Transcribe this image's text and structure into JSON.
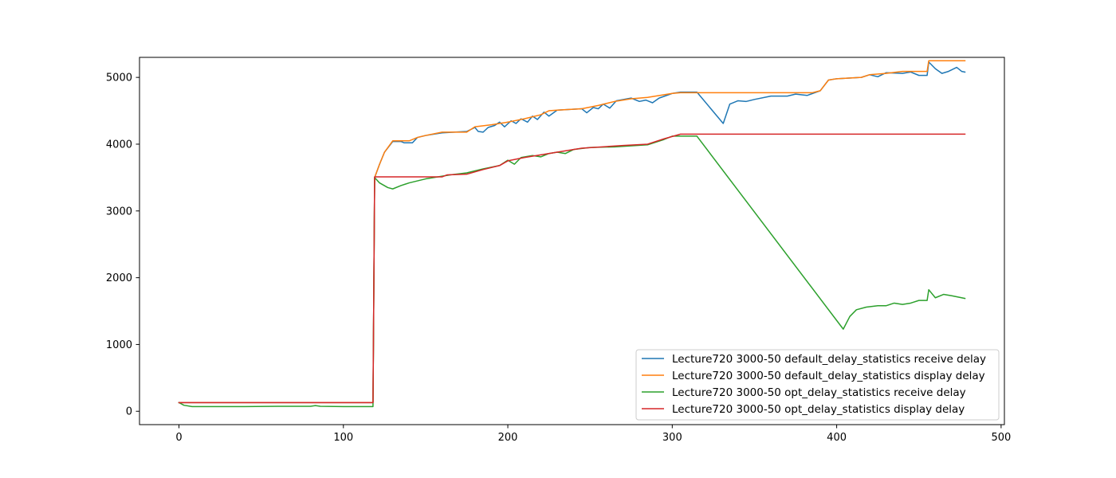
{
  "chart_data": {
    "type": "line",
    "title": "",
    "xlabel": "",
    "ylabel": "",
    "xlim": [
      -24,
      502
    ],
    "ylim": [
      -200,
      5300
    ],
    "xticks": [
      0,
      100,
      200,
      300,
      400,
      500
    ],
    "yticks": [
      0,
      1000,
      2000,
      3000,
      4000,
      5000
    ],
    "grid": false,
    "legend_position": "lower-right",
    "series": [
      {
        "name": "Lecture720 3000-50 default_delay_statistics receive delay",
        "color": "#1f77b4",
        "points": [
          [
            0,
            130
          ],
          [
            118,
            130
          ],
          [
            119,
            3500
          ],
          [
            122,
            3700
          ],
          [
            125,
            3880
          ],
          [
            130,
            4040
          ],
          [
            135,
            4040
          ],
          [
            137,
            4020
          ],
          [
            142,
            4020
          ],
          [
            145,
            4100
          ],
          [
            150,
            4130
          ],
          [
            160,
            4170
          ],
          [
            175,
            4190
          ],
          [
            180,
            4250
          ],
          [
            182,
            4190
          ],
          [
            185,
            4180
          ],
          [
            188,
            4250
          ],
          [
            192,
            4280
          ],
          [
            195,
            4330
          ],
          [
            198,
            4260
          ],
          [
            202,
            4350
          ],
          [
            205,
            4310
          ],
          [
            208,
            4380
          ],
          [
            212,
            4330
          ],
          [
            215,
            4420
          ],
          [
            218,
            4370
          ],
          [
            222,
            4480
          ],
          [
            225,
            4420
          ],
          [
            230,
            4510
          ],
          [
            245,
            4530
          ],
          [
            248,
            4470
          ],
          [
            252,
            4550
          ],
          [
            255,
            4530
          ],
          [
            258,
            4600
          ],
          [
            262,
            4540
          ],
          [
            266,
            4650
          ],
          [
            275,
            4690
          ],
          [
            280,
            4640
          ],
          [
            284,
            4660
          ],
          [
            288,
            4620
          ],
          [
            292,
            4690
          ],
          [
            300,
            4760
          ],
          [
            305,
            4780
          ],
          [
            315,
            4780
          ],
          [
            331,
            4310
          ],
          [
            335,
            4600
          ],
          [
            340,
            4650
          ],
          [
            345,
            4640
          ],
          [
            350,
            4670
          ],
          [
            360,
            4720
          ],
          [
            370,
            4720
          ],
          [
            375,
            4750
          ],
          [
            382,
            4730
          ],
          [
            390,
            4800
          ],
          [
            395,
            4960
          ],
          [
            400,
            4980
          ],
          [
            415,
            5000
          ],
          [
            420,
            5040
          ],
          [
            425,
            5010
          ],
          [
            430,
            5070
          ],
          [
            440,
            5060
          ],
          [
            445,
            5080
          ],
          [
            450,
            5030
          ],
          [
            455,
            5030
          ],
          [
            456,
            5230
          ],
          [
            460,
            5130
          ],
          [
            464,
            5060
          ],
          [
            468,
            5090
          ],
          [
            473,
            5150
          ],
          [
            476,
            5090
          ],
          [
            478,
            5080
          ]
        ]
      },
      {
        "name": "Lecture720 3000-50 default_delay_statistics display delay",
        "color": "#ff7f0e",
        "points": [
          [
            0,
            130
          ],
          [
            118,
            130
          ],
          [
            119,
            3500
          ],
          [
            122,
            3700
          ],
          [
            125,
            3880
          ],
          [
            130,
            4050
          ],
          [
            140,
            4050
          ],
          [
            145,
            4100
          ],
          [
            150,
            4130
          ],
          [
            160,
            4180
          ],
          [
            175,
            4180
          ],
          [
            180,
            4260
          ],
          [
            190,
            4290
          ],
          [
            200,
            4330
          ],
          [
            210,
            4380
          ],
          [
            220,
            4440
          ],
          [
            225,
            4500
          ],
          [
            230,
            4510
          ],
          [
            245,
            4530
          ],
          [
            255,
            4580
          ],
          [
            265,
            4640
          ],
          [
            275,
            4680
          ],
          [
            285,
            4700
          ],
          [
            300,
            4760
          ],
          [
            305,
            4770
          ],
          [
            385,
            4770
          ],
          [
            390,
            4800
          ],
          [
            395,
            4960
          ],
          [
            400,
            4980
          ],
          [
            415,
            5000
          ],
          [
            420,
            5040
          ],
          [
            430,
            5060
          ],
          [
            440,
            5090
          ],
          [
            455,
            5090
          ],
          [
            456,
            5250
          ],
          [
            478,
            5250
          ]
        ]
      },
      {
        "name": "Lecture720 3000-50 opt_delay_statistics receive delay",
        "color": "#2ca02c",
        "points": [
          [
            0,
            130
          ],
          [
            3,
            90
          ],
          [
            8,
            70
          ],
          [
            20,
            70
          ],
          [
            40,
            70
          ],
          [
            60,
            75
          ],
          [
            80,
            75
          ],
          [
            83,
            85
          ],
          [
            86,
            75
          ],
          [
            100,
            70
          ],
          [
            118,
            70
          ],
          [
            119,
            3500
          ],
          [
            122,
            3420
          ],
          [
            127,
            3350
          ],
          [
            130,
            3330
          ],
          [
            135,
            3380
          ],
          [
            140,
            3420
          ],
          [
            150,
            3480
          ],
          [
            165,
            3540
          ],
          [
            175,
            3570
          ],
          [
            185,
            3630
          ],
          [
            195,
            3680
          ],
          [
            200,
            3760
          ],
          [
            204,
            3700
          ],
          [
            208,
            3800
          ],
          [
            215,
            3830
          ],
          [
            220,
            3810
          ],
          [
            225,
            3860
          ],
          [
            230,
            3880
          ],
          [
            235,
            3860
          ],
          [
            240,
            3920
          ],
          [
            250,
            3950
          ],
          [
            265,
            3960
          ],
          [
            285,
            3990
          ],
          [
            295,
            4070
          ],
          [
            300,
            4120
          ],
          [
            315,
            4120
          ],
          [
            404,
            1230
          ],
          [
            408,
            1420
          ],
          [
            412,
            1520
          ],
          [
            418,
            1560
          ],
          [
            425,
            1580
          ],
          [
            430,
            1580
          ],
          [
            435,
            1620
          ],
          [
            440,
            1600
          ],
          [
            445,
            1620
          ],
          [
            450,
            1660
          ],
          [
            455,
            1660
          ],
          [
            456,
            1820
          ],
          [
            460,
            1700
          ],
          [
            465,
            1750
          ],
          [
            470,
            1730
          ],
          [
            478,
            1690
          ]
        ]
      },
      {
        "name": "Lecture720 3000-50 opt_delay_statistics display delay",
        "color": "#d62728",
        "points": [
          [
            0,
            130
          ],
          [
            118,
            130
          ],
          [
            119,
            3510
          ],
          [
            160,
            3510
          ],
          [
            163,
            3540
          ],
          [
            175,
            3550
          ],
          [
            185,
            3620
          ],
          [
            195,
            3680
          ],
          [
            200,
            3750
          ],
          [
            210,
            3800
          ],
          [
            220,
            3840
          ],
          [
            230,
            3880
          ],
          [
            245,
            3940
          ],
          [
            270,
            3980
          ],
          [
            285,
            4000
          ],
          [
            295,
            4080
          ],
          [
            305,
            4150
          ],
          [
            478,
            4150
          ]
        ]
      }
    ]
  }
}
